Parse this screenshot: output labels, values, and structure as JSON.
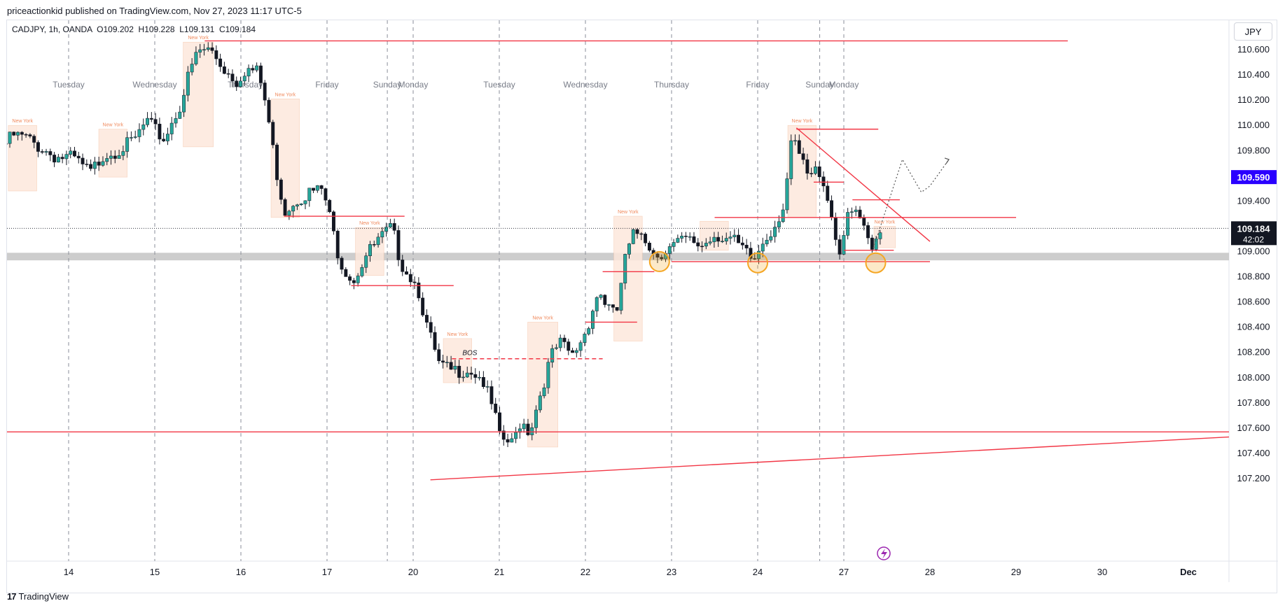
{
  "publisher_line": "priceactionkid published on TradingView.com, Nov 27, 2023 11:17 UTC-5",
  "symbol_line": "CADJPY, 1h, OANDA  O109.202  H109.228  L109.131  C109.184",
  "currency_button": "JPY",
  "footer_brand": "TradingView",
  "colors": {
    "up": "#26a69a",
    "down": "#131722",
    "level_line": "#f23645",
    "session_box": "#fde8dc",
    "support_zone": "#c8c8c8",
    "alert_price_bg": "#2a00ff",
    "last_price_bg": "#131722",
    "circle": "#f5a623"
  },
  "chart_data": {
    "type": "candlestick",
    "symbol": "CADJPY",
    "timeframe": "1h",
    "broker": "OANDA",
    "ohlc": {
      "open": 109.202,
      "high": 109.228,
      "low": 109.131,
      "close": 109.184
    },
    "y_axis_ticks": [
      "110.600",
      "110.400",
      "110.200",
      "110.000",
      "109.800",
      "109.400",
      "109.200",
      "109.000",
      "108.800",
      "108.600",
      "108.400",
      "108.200",
      "108.000",
      "107.800",
      "107.600",
      "107.400",
      "107.200"
    ],
    "ylim": [
      107.18,
      110.85
    ],
    "x_ticks": [
      {
        "label": "14",
        "t": 0
      },
      {
        "label": "15",
        "t": 1
      },
      {
        "label": "16",
        "t": 2
      },
      {
        "label": "17",
        "t": 3
      },
      {
        "label": "20",
        "t": 4
      },
      {
        "label": "21",
        "t": 5
      },
      {
        "label": "22",
        "t": 6
      },
      {
        "label": "23",
        "t": 7
      },
      {
        "label": "24",
        "t": 8
      },
      {
        "label": "27",
        "t": 9
      },
      {
        "label": "28",
        "t": 10
      },
      {
        "label": "29",
        "t": 11
      },
      {
        "label": "30",
        "t": 12
      },
      {
        "label": "Dec",
        "t": 13
      }
    ],
    "day_labels": [
      {
        "label": "Tuesday",
        "t": 0.0
      },
      {
        "label": "Wednesday",
        "t": 1.0
      },
      {
        "label": "Thursday",
        "t": 2.05
      },
      {
        "label": "Friday",
        "t": 3.0
      },
      {
        "label": "Sunday",
        "t": 3.7
      },
      {
        "label": "Monday",
        "t": 4.0
      },
      {
        "label": "Tuesday",
        "t": 5.0
      },
      {
        "label": "Wednesday",
        "t": 6.0
      },
      {
        "label": "Thursday",
        "t": 7.0
      },
      {
        "label": "Friday",
        "t": 8.0
      },
      {
        "label": "Sunday",
        "t": 8.72
      },
      {
        "label": "Monday",
        "t": 9.0
      }
    ],
    "session_separators": [
      0.0,
      1.0,
      2.0,
      3.0,
      3.7,
      4.0,
      5.0,
      6.0,
      7.0,
      8.0,
      8.72,
      9.0
    ],
    "last_price": {
      "value": 109.184,
      "countdown": "42:02"
    },
    "alert_price": 109.59,
    "support_zone": [
      108.93,
      108.99
    ],
    "levels": [
      {
        "y": 110.67,
        "t0": 1.58,
        "t1": 11.6
      },
      {
        "y": 109.97,
        "t0": 8.45,
        "t1": 9.4
      },
      {
        "y": 109.55,
        "t0": 8.65,
        "t1": 9.0
      },
      {
        "y": 109.28,
        "t0": 2.5,
        "t1": 3.9
      },
      {
        "y": 109.27,
        "t0": 7.5,
        "t1": 11.0
      },
      {
        "y": 109.41,
        "t0": 9.1,
        "t1": 9.65
      },
      {
        "y": 109.01,
        "t0": 9.0,
        "t1": 9.58
      },
      {
        "y": 108.92,
        "t0": 7.0,
        "t1": 10.0
      },
      {
        "y": 108.84,
        "t0": 6.2,
        "t1": 6.8
      },
      {
        "y": 108.73,
        "t0": 3.28,
        "t1": 4.47
      },
      {
        "y": 108.44,
        "t0": 6.0,
        "t1": 6.6
      },
      {
        "y": 107.57,
        "t0": -0.73,
        "t1": 13.5
      }
    ],
    "bos": {
      "label": "BOS",
      "y": 108.15,
      "t0": 4.45,
      "t1": 6.2
    },
    "trendlines": [
      {
        "t0": 8.45,
        "y0": 109.98,
        "t1": 10.0,
        "y1": 109.08
      },
      {
        "t0": 4.2,
        "y0": 107.19,
        "t1": 13.5,
        "y1": 107.53
      }
    ],
    "sessions": [
      {
        "label": "New York",
        "t0": -0.7,
        "t1": -0.37,
        "y_hi": 110.0,
        "y_lo": 109.48
      },
      {
        "label": "New York",
        "t0": 0.35,
        "t1": 0.68,
        "y_hi": 109.97,
        "y_lo": 109.59
      },
      {
        "label": "New York",
        "t0": 1.33,
        "t1": 1.68,
        "y_hi": 110.66,
        "y_lo": 109.83
      },
      {
        "label": "New York",
        "t0": 2.35,
        "t1": 2.68,
        "y_hi": 110.21,
        "y_lo": 109.27
      },
      {
        "label": "New York",
        "t0": 3.33,
        "t1": 3.66,
        "y_hi": 109.19,
        "y_lo": 108.81
      },
      {
        "label": "New York",
        "t0": 4.35,
        "t1": 4.68,
        "y_hi": 108.31,
        "y_lo": 107.96
      },
      {
        "label": "New York",
        "t0": 5.33,
        "t1": 5.68,
        "y_hi": 108.44,
        "y_lo": 107.45
      },
      {
        "label": "New York",
        "t0": 6.33,
        "t1": 6.66,
        "y_hi": 109.28,
        "y_lo": 108.29
      },
      {
        "label": "",
        "t0": 7.33,
        "t1": 7.66,
        "y_hi": 109.24,
        "y_lo": 109.01
      },
      {
        "label": "New York",
        "t0": 8.35,
        "t1": 8.68,
        "y_hi": 110.0,
        "y_lo": 109.27
      },
      {
        "label": "New York",
        "t0": 9.35,
        "t1": 9.6,
        "y_hi": 109.2,
        "y_lo": 109.03
      }
    ],
    "highlight_circles": [
      {
        "t": 6.86,
        "y": 108.92
      },
      {
        "t": 8.0,
        "y": 108.91
      },
      {
        "t": 9.37,
        "y": 108.91
      }
    ],
    "projection": [
      {
        "t": 9.33,
        "y": 109.0
      },
      {
        "t": 9.68,
        "y": 109.73
      },
      {
        "t": 9.9,
        "y": 109.47
      },
      {
        "t": 10.0,
        "y": 109.52
      },
      {
        "t": 10.22,
        "y": 109.73
      }
    ],
    "price_path": [
      [
        -0.73,
        109.85
      ],
      [
        -0.6,
        109.95
      ],
      [
        -0.45,
        109.93
      ],
      [
        -0.3,
        109.86
      ],
      [
        -0.1,
        109.78
      ],
      [
        0.1,
        109.77
      ],
      [
        0.3,
        109.65
      ],
      [
        0.45,
        109.8
      ],
      [
        0.6,
        109.83
      ],
      [
        0.8,
        109.9
      ],
      [
        0.95,
        110.06
      ],
      [
        1.15,
        109.92
      ],
      [
        1.35,
        110.2
      ],
      [
        1.45,
        110.45
      ],
      [
        1.55,
        110.62
      ],
      [
        1.7,
        110.63
      ],
      [
        1.85,
        110.48
      ],
      [
        2.0,
        110.38
      ],
      [
        2.1,
        110.48
      ],
      [
        2.25,
        110.45
      ],
      [
        2.35,
        110.15
      ],
      [
        2.45,
        109.7
      ],
      [
        2.55,
        109.35
      ],
      [
        2.7,
        109.45
      ],
      [
        2.85,
        109.5
      ],
      [
        3.0,
        109.52
      ],
      [
        3.2,
        108.95
      ],
      [
        3.35,
        108.8
      ],
      [
        3.5,
        109.0
      ],
      [
        3.65,
        109.12
      ],
      [
        3.8,
        109.22
      ],
      [
        3.9,
        108.95
      ],
      [
        4.0,
        108.85
      ],
      [
        4.1,
        108.75
      ],
      [
        4.2,
        108.45
      ],
      [
        4.35,
        108.12
      ],
      [
        4.5,
        108.08
      ],
      [
        4.7,
        108.1
      ],
      [
        4.85,
        108.02
      ],
      [
        5.0,
        107.72
      ],
      [
        5.05,
        107.55
      ],
      [
        5.2,
        107.5
      ],
      [
        5.3,
        107.7
      ],
      [
        5.4,
        107.6
      ],
      [
        5.5,
        107.85
      ],
      [
        5.65,
        108.2
      ],
      [
        5.75,
        108.3
      ],
      [
        5.9,
        108.2
      ],
      [
        6.05,
        108.4
      ],
      [
        6.2,
        108.72
      ],
      [
        6.3,
        108.6
      ],
      [
        6.4,
        108.5
      ],
      [
        6.5,
        108.95
      ],
      [
        6.6,
        109.15
      ],
      [
        6.7,
        109.2
      ],
      [
        6.85,
        109.0
      ],
      [
        7.0,
        109.05
      ],
      [
        7.2,
        109.12
      ],
      [
        7.4,
        109.08
      ],
      [
        7.55,
        109.17
      ],
      [
        7.75,
        109.12
      ],
      [
        7.9,
        109.02
      ],
      [
        8.0,
        108.95
      ],
      [
        8.1,
        109.1
      ],
      [
        8.25,
        109.25
      ],
      [
        8.35,
        109.4
      ],
      [
        8.45,
        109.93
      ],
      [
        8.55,
        109.75
      ],
      [
        8.65,
        109.6
      ],
      [
        8.75,
        109.7
      ],
      [
        8.85,
        109.5
      ],
      [
        8.95,
        109.15
      ],
      [
        9.0,
        109.05
      ],
      [
        9.1,
        109.3
      ],
      [
        9.2,
        109.35
      ],
      [
        9.3,
        109.15
      ],
      [
        9.37,
        109.0
      ],
      [
        9.45,
        109.18
      ]
    ]
  }
}
